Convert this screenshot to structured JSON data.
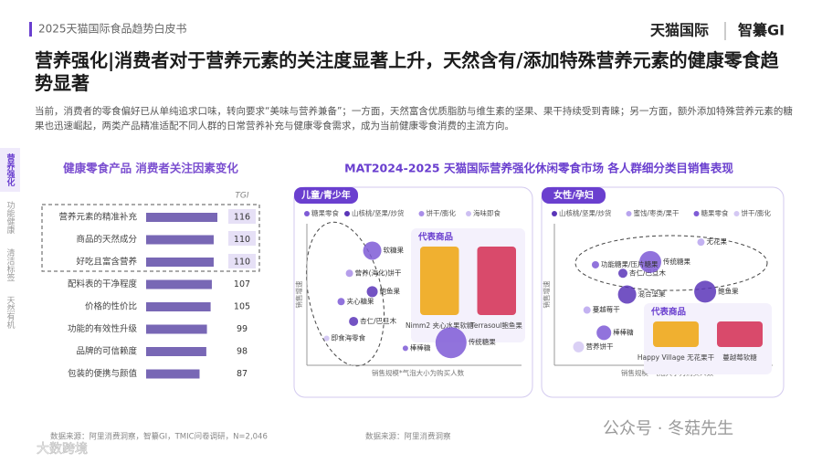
{
  "header": {
    "report": "2025天猫国际食品趋势白皮书",
    "brand_1": "天猫国际",
    "brand_2": "智纂GI"
  },
  "title": "营养强化|消费者对于营养元素的关注度显著上升，天然含有/添加特殊营养元素的健康零食趋势显著",
  "intro": "当前，消费者的零食偏好已从单纯追求口味，转向要求“美味与营养兼备”；一方面，天然富含优质脂肪与维生素的坚果、果干持续受到青睐；另一方面，额外添加特殊营养元素的糖果也迅速崛起，两类产品精准适配不同人群的日常营养补充与健康零食需求，成为当前健康零食消费的主流方向。",
  "sidebar": [
    "营养强化",
    "功能健康",
    "清洁标签",
    "天然有机"
  ],
  "market_title": "MAT2024-2025 天猫国际营养强化休闲零食市场 各人群细分类目销售表现",
  "chart_data": [
    {
      "type": "bar",
      "title": "健康零食产品 消费者关注因素变化",
      "value_header": "TGI",
      "categories": [
        "营养元素的精准补充",
        "商品的天然成分",
        "好吃且富含营养",
        "配料表的干净程度",
        "价格的性价比",
        "功能的有效性升级",
        "品牌的可信赖度",
        "包装的便携与颜值"
      ],
      "values": [
        116,
        110,
        110,
        107,
        105,
        99,
        98,
        87
      ],
      "color": "#7867b5",
      "source": "数据来源：阿里消费洞察，智纂GI，TMIC问卷调研，N=2,046"
    },
    {
      "type": "bubble",
      "panel": "儿童/青少年",
      "x_label": "销售规模*气泡大小为购买人数",
      "y_label": "销售增速",
      "xlim": [
        0,
        100
      ],
      "ylim": [
        0,
        100
      ],
      "series": [
        {
          "name": "糖果零食",
          "color": "#7e5bd6",
          "labels": [
            "软糖果",
            "夹心糖果",
            "传统糖果",
            "棒棒糖"
          ],
          "x": [
            28,
            13,
            66,
            44
          ],
          "y": [
            81,
            45,
            16,
            12
          ],
          "sizes": [
            10,
            4,
            17,
            3
          ]
        },
        {
          "name": "山核桃/坚果/炒货",
          "color": "#5a35b8",
          "labels": [
            "鲍鱼果",
            "杏仁/巴旦木"
          ],
          "x": [
            28,
            19
          ],
          "y": [
            52,
            31
          ],
          "sizes": [
            6,
            5
          ]
        },
        {
          "name": "饼干/膨化",
          "color": "#a98ee8",
          "labels": [
            "营养(海化)饼干"
          ],
          "x": [
            17
          ],
          "y": [
            65
          ],
          "sizes": [
            4
          ]
        },
        {
          "name": "海味即食",
          "color": "#cdbff2",
          "labels": [
            "即食海零食"
          ],
          "x": [
            6
          ],
          "y": [
            19
          ],
          "sizes": [
            3
          ]
        }
      ],
      "products": {
        "label": "代表商品",
        "items": [
          "Nimm2 夹心水果软糖",
          "Terrasoul鲍鱼果"
        ]
      },
      "source": "数据来源：阿里消费洞察"
    },
    {
      "type": "bubble",
      "panel": "女性/孕妇",
      "x_label": "销售规模*气泡大小为购买人数",
      "y_label": "销售增速",
      "xlim": [
        0,
        100
      ],
      "ylim": [
        0,
        100
      ],
      "series": [
        {
          "name": "山核桃/坚果/炒货",
          "color": "#5a35b8",
          "labels": [
            "杏仁/巴旦木",
            "混合坚果",
            "鲍鱼果"
          ],
          "x": [
            29,
            31,
            68
          ],
          "y": [
            65,
            50,
            52
          ],
          "sizes": [
            5,
            10,
            12
          ]
        },
        {
          "name": "蜜饯/枣类/果干",
          "color": "#b8a4ee",
          "labels": [
            "无花果",
            "蔓越莓干"
          ],
          "x": [
            66,
            12
          ],
          "y": [
            87,
            39
          ],
          "sizes": [
            4,
            4
          ]
        },
        {
          "name": "糖果零食",
          "color": "#7e5bd6",
          "labels": [
            "传统糖果",
            "功能糖果/压片糖果",
            "棒棒糖"
          ],
          "x": [
            42,
            16,
            20
          ],
          "y": [
            73,
            71,
            23
          ],
          "sizes": [
            12,
            4,
            8
          ]
        },
        {
          "name": "饼干/膨化",
          "color": "#d4c8f3",
          "labels": [
            "营养饼干"
          ],
          "x": [
            8
          ],
          "y": [
            13
          ],
          "sizes": [
            6
          ]
        }
      ],
      "products": {
        "label": "代表商品",
        "items": [
          "Happy Village 无花果干",
          "蔓越莓软糖"
        ]
      }
    }
  ],
  "watermarks": [
    "公众号 · 冬菇先生",
    "大数跨境"
  ]
}
